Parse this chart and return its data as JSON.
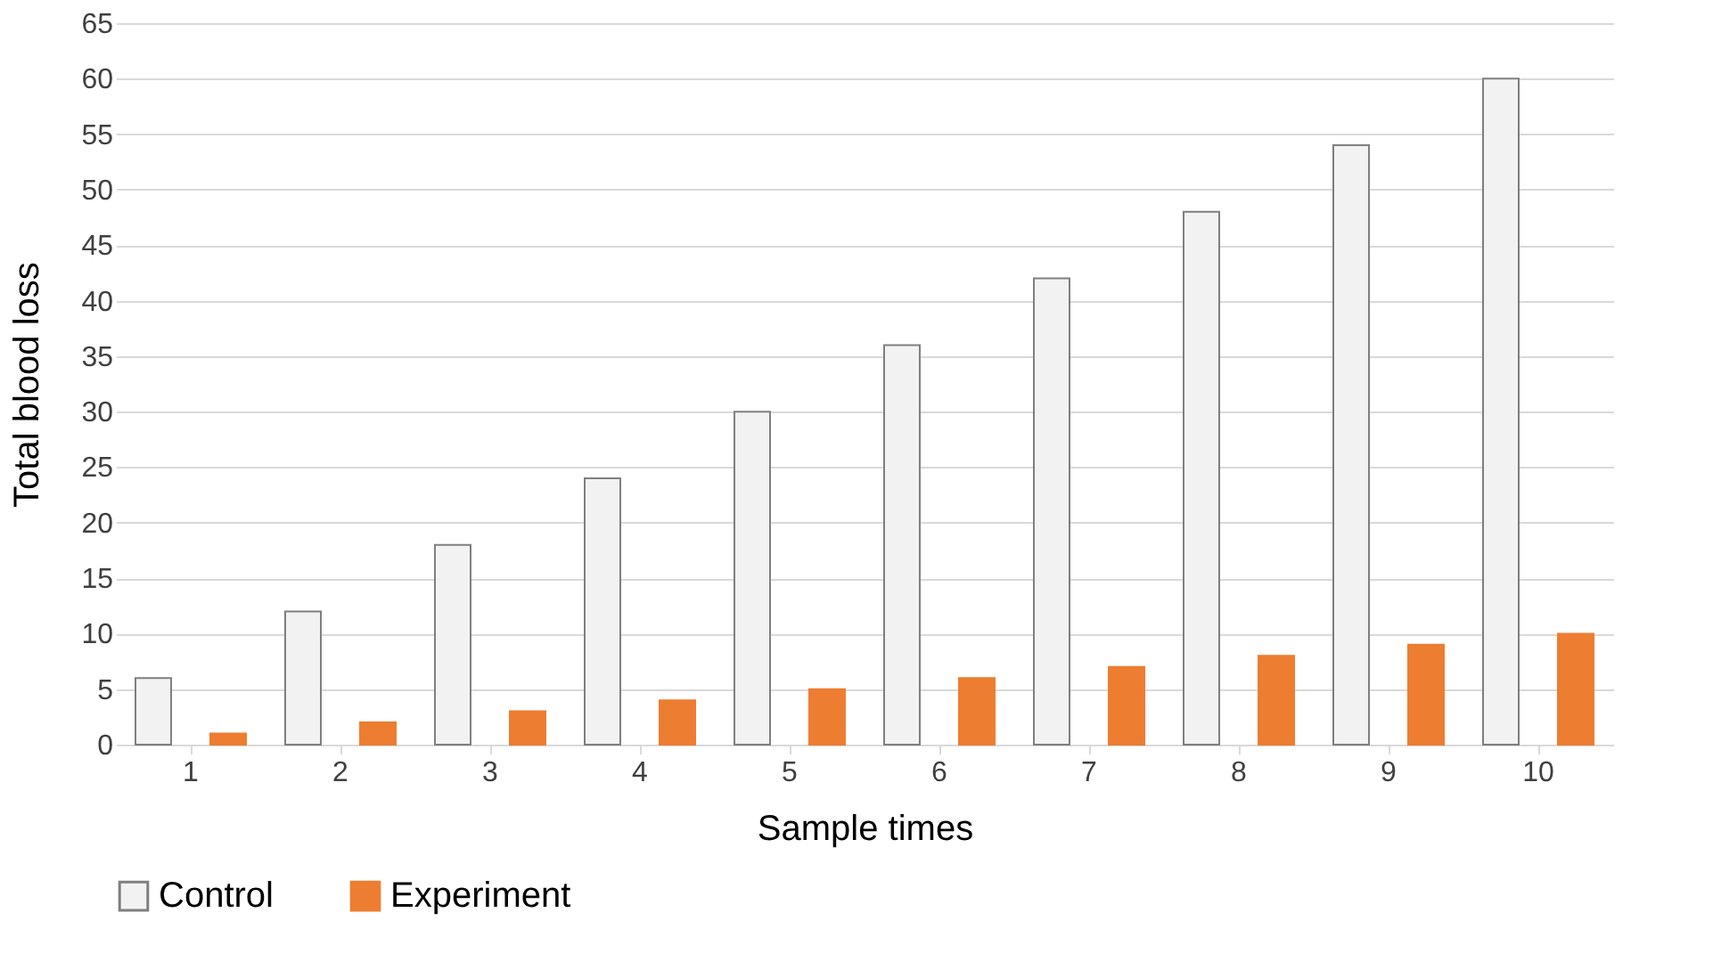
{
  "chart_data": {
    "type": "bar",
    "xlabel": "Sample times",
    "ylabel": "Total blood loss",
    "categories": [
      "1",
      "2",
      "3",
      "4",
      "5",
      "6",
      "7",
      "8",
      "9",
      "10"
    ],
    "series": [
      {
        "name": "Control",
        "color": "#f2f2f2",
        "values": [
          6,
          12,
          18,
          24,
          30,
          36,
          42,
          48,
          54,
          60
        ]
      },
      {
        "name": "Experiment",
        "color": "#ed7d31",
        "values": [
          1,
          2,
          3,
          4,
          5,
          6,
          7,
          8,
          9,
          10
        ]
      }
    ],
    "ylim": [
      0,
      65
    ],
    "yticks": [
      0,
      5,
      10,
      15,
      20,
      25,
      30,
      35,
      40,
      45,
      50,
      55,
      60,
      65
    ],
    "grid": "y",
    "legend": "bottom"
  }
}
